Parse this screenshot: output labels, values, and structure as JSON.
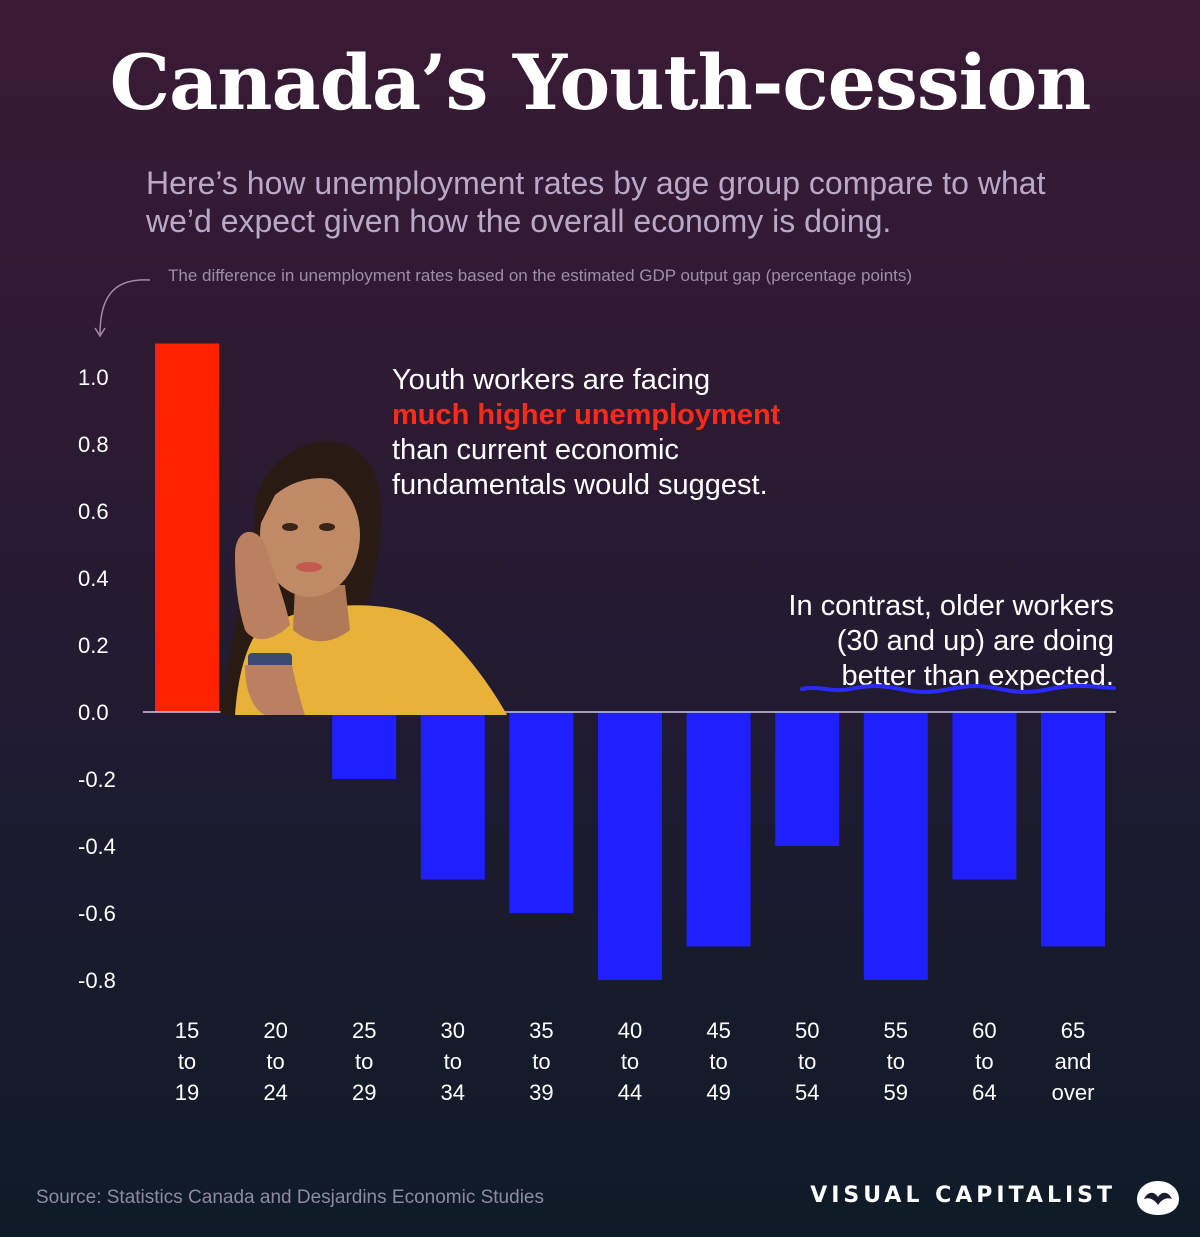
{
  "title": "Canada’s Youth-cession",
  "subtitle": "Here’s how unemployment rates by age group compare to what we’d expect given how the overall economy is doing.",
  "unit_note": "The difference in unemployment rates based on the estimated GDP output gap (percentage points)",
  "annotations": {
    "youth_pre": "Youth workers are facing",
    "youth_highlight": "much higher unemployment",
    "youth_post": "than current economic fundamentals would suggest.",
    "older_line1": "In contrast, older workers",
    "older_line2": "(30 and up) are doing",
    "older_line3": "better than expected."
  },
  "source": "Source: Statistics Canada and Desjardins Economic Studies",
  "brand": "VISUAL CAPITALIST",
  "icons": {
    "logo": "visual-capitalist-logo-icon",
    "arrow": "curved-arrow-icon",
    "person": "young-woman-photo"
  },
  "colors": {
    "positive": "#ff2200",
    "negative": "#1f1fff",
    "highlight": "#ff2a1a"
  },
  "chart_data": {
    "type": "bar",
    "categories": [
      [
        "15",
        "to",
        "19"
      ],
      [
        "20",
        "to",
        "24"
      ],
      [
        "25",
        "to",
        "29"
      ],
      [
        "30",
        "to",
        "34"
      ],
      [
        "35",
        "to",
        "39"
      ],
      [
        "40",
        "to",
        "44"
      ],
      [
        "45",
        "to",
        "49"
      ],
      [
        "50",
        "to",
        "54"
      ],
      [
        "55",
        "to",
        "59"
      ],
      [
        "60",
        "to",
        "64"
      ],
      [
        "65",
        "and",
        "over"
      ]
    ],
    "values": [
      1.1,
      0.1,
      -0.2,
      -0.5,
      -0.6,
      -0.8,
      -0.7,
      -0.4,
      -0.8,
      -0.5,
      -0.7
    ],
    "yticks": [
      "1.0",
      "0.8",
      "0.6",
      "0.4",
      "0.2",
      "0.0",
      "-0.2",
      "-0.4",
      "-0.6",
      "-0.8"
    ],
    "ylim": [
      -0.8,
      1.0
    ],
    "grid": false,
    "legend": "none"
  }
}
